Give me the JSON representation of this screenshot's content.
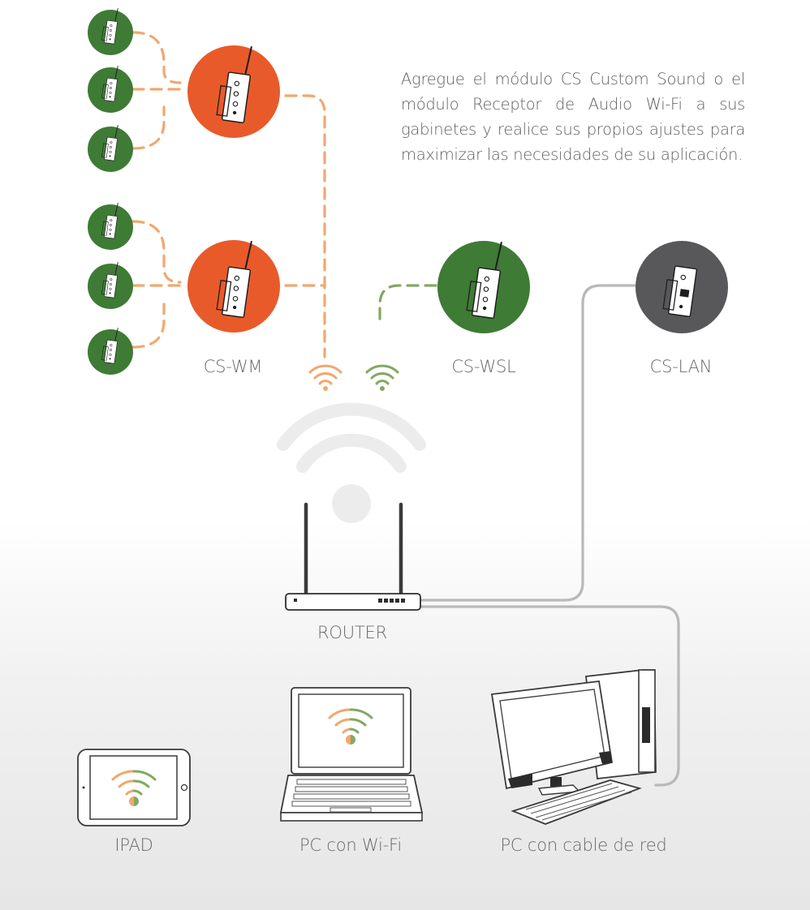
{
  "intro": {
    "text": "Agregue el módulo CS Custom Sound o el módulo Receptor de Audio Wi-Fi a sus gabinetes y realice sus propios ajustes para maximizar las necesidades de su aplicación."
  },
  "labels": {
    "cs_wm": "CS-WM",
    "cs_wsl": "CS-WSL",
    "cs_lan": "CS-LAN",
    "router": "ROUTER",
    "ipad": "IPAD",
    "pc_wifi": "PC con Wi-Fi",
    "pc_cable": "PC con cable de red"
  },
  "colors": {
    "orange": "#e85a2a",
    "green": "#3e7b35",
    "gray_module": "#58585b",
    "dash_orange": "#f2a76f",
    "dash_green": "#83a862",
    "cable": "#b9b9b9",
    "wifi_light": "#ececec",
    "text": "#5f5f5f"
  }
}
